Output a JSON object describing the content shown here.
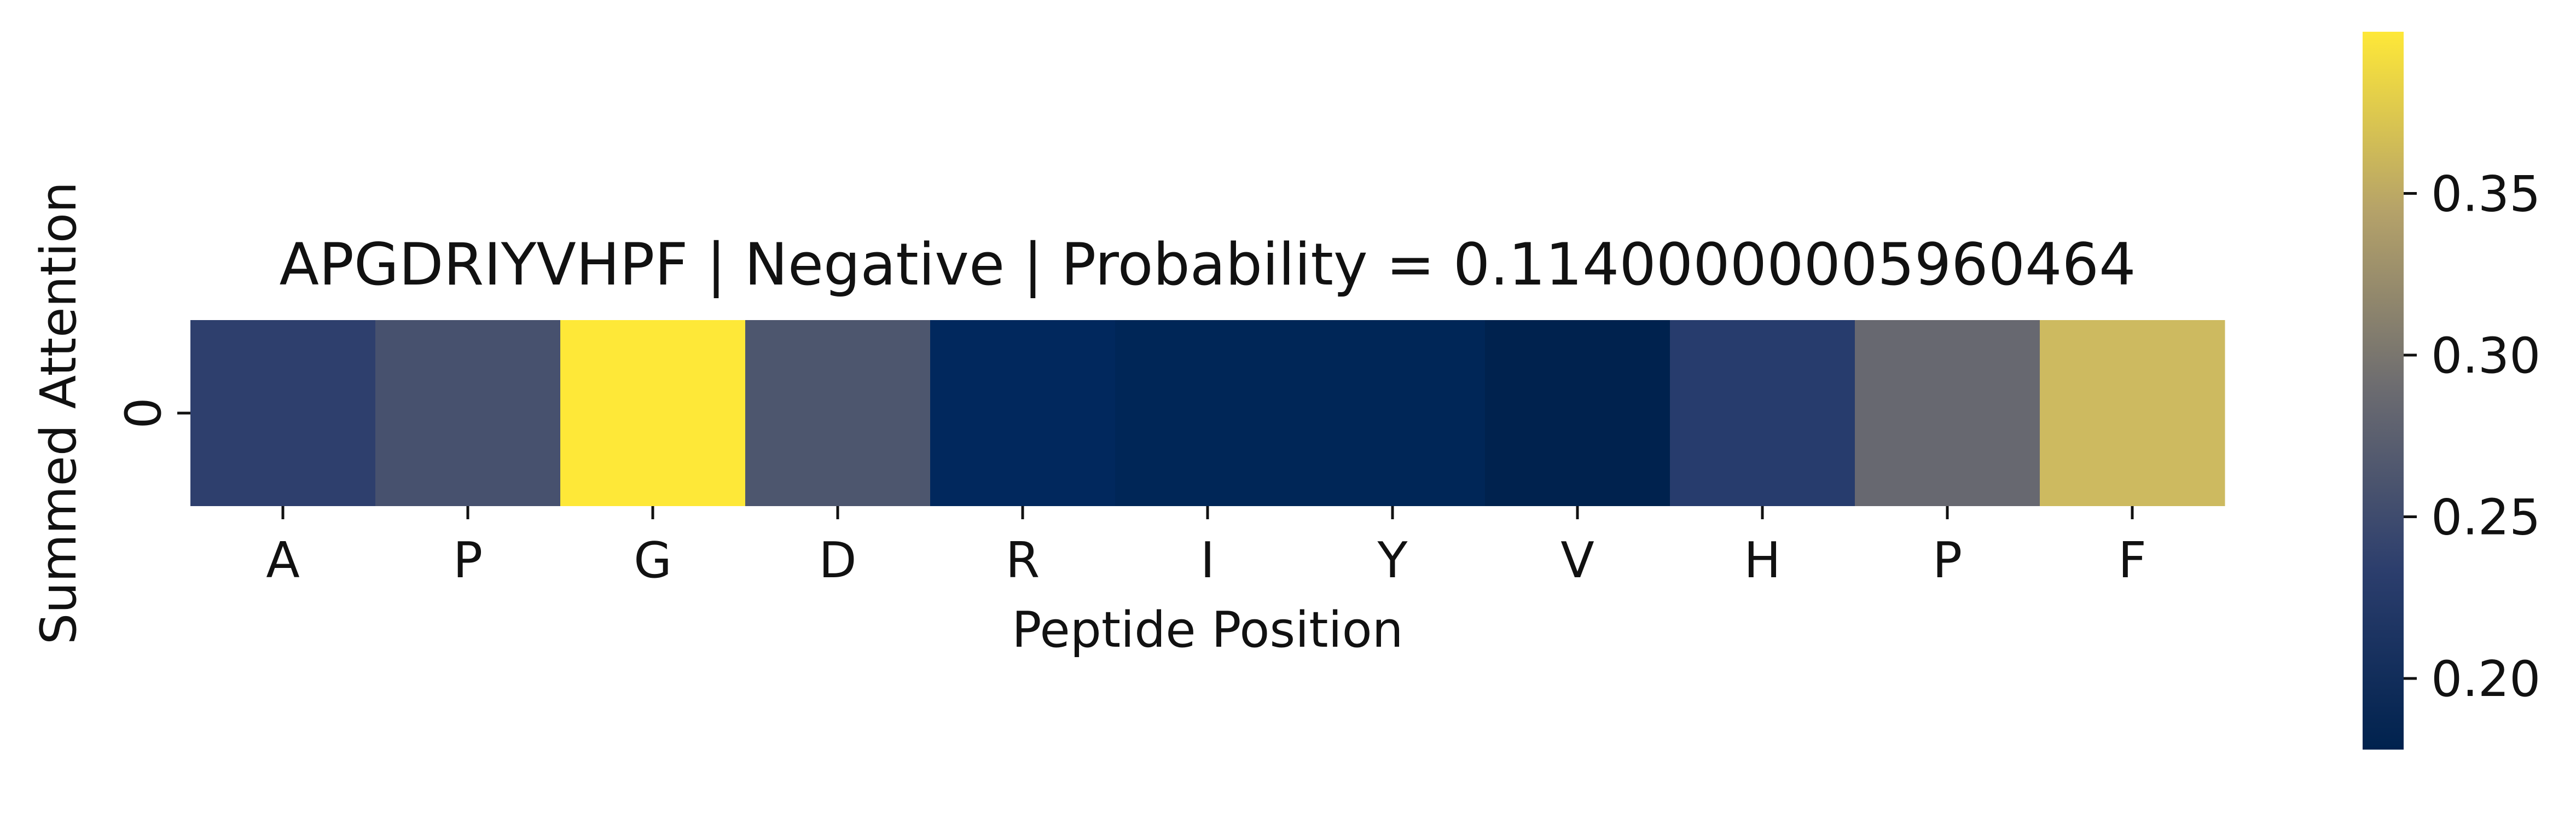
{
  "chart_data": {
    "type": "heatmap",
    "title": "APGDRIYVHPF | Negative | Probability = 0.11400000005960464",
    "xlabel": "Peptide Position",
    "ylabel": "Summed Attention",
    "x_categories": [
      "A",
      "P",
      "G",
      "D",
      "R",
      "I",
      "Y",
      "V",
      "H",
      "P",
      "F"
    ],
    "y_categories": [
      "0"
    ],
    "values": [
      [
        0.235,
        0.255,
        0.4,
        0.26,
        0.19,
        0.185,
        0.185,
        0.178,
        0.23,
        0.285,
        0.362
      ]
    ],
    "colormap": "cividis",
    "colorbar": {
      "range": [
        0.178,
        0.4
      ],
      "ticks": [
        0.2,
        0.25,
        0.3,
        0.35
      ],
      "tick_labels": [
        "0.20",
        "0.25",
        "0.30",
        "0.35"
      ]
    },
    "grid": false,
    "legend": "colorbar-right"
  }
}
